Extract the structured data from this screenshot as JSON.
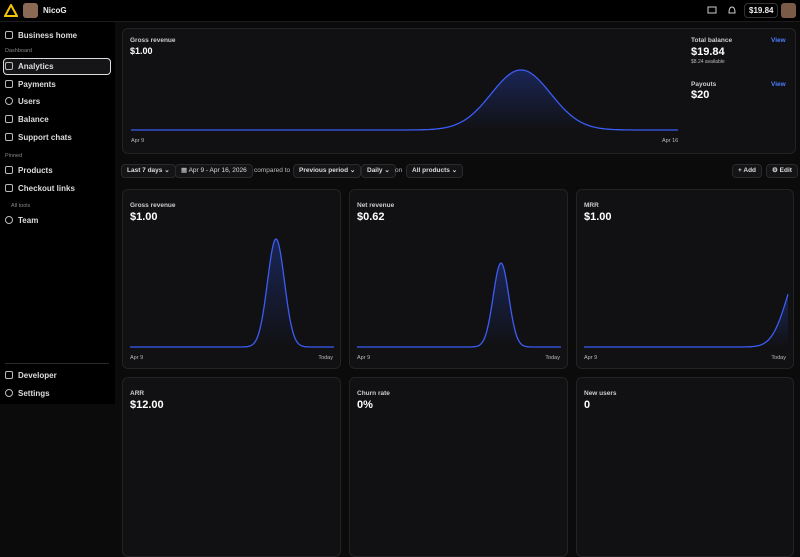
{
  "topbar": {
    "account": "NicoG",
    "balance": "$19.84"
  },
  "sidebar": {
    "items": [
      "Business home"
    ],
    "sections": [
      {
        "label": "Dashboard",
        "items": [
          "Analytics",
          "Payments",
          "Users",
          "Balance",
          "Support chats"
        ]
      },
      {
        "label": "Pinned",
        "items": [
          "Products",
          "Checkout links"
        ]
      },
      {
        "label": "All tools",
        "items": [
          "Team"
        ]
      }
    ],
    "footer": [
      "Developer",
      "Settings"
    ]
  },
  "overview": {
    "title": "Gross revenue",
    "value": "$1.00",
    "start": "Apr 9",
    "end": "Apr 16",
    "balance": {
      "title": "Total balance",
      "link": "View",
      "value": "$19.84",
      "note": "$8.24 available"
    },
    "payouts": {
      "title": "Payouts",
      "link": "View",
      "value": "$20"
    }
  },
  "filters": {
    "range": "Last 7 days",
    "dates": "Apr 9 - Apr 16, 2026",
    "compared": "compared to",
    "comparison": "Previous period",
    "interval": "Daily",
    "on": "on",
    "products": "All products",
    "add": "Add",
    "edit": "Edit"
  },
  "cards": [
    {
      "title": "Gross revenue",
      "value": "$1.00",
      "start": "Apr 9",
      "end": "Today"
    },
    {
      "title": "Net revenue",
      "value": "$0.62",
      "start": "Apr 9",
      "end": "Today"
    },
    {
      "title": "MRR",
      "value": "$1.00",
      "start": "Apr 9",
      "end": "Today"
    },
    {
      "title": "ARR",
      "value": "$12.00"
    },
    {
      "title": "Churn rate",
      "value": "0%"
    },
    {
      "title": "New users",
      "value": "0"
    }
  ]
}
